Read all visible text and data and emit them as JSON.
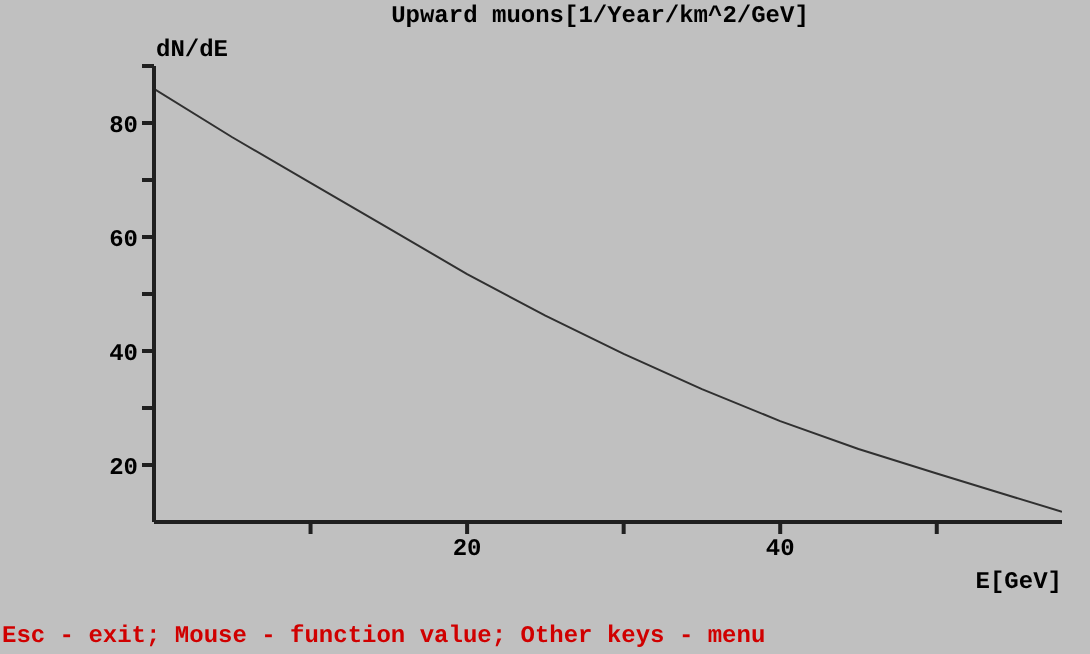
{
  "chart_data": {
    "type": "line",
    "title": "Upward muons[1/Year/km^2/GeV]",
    "ylabel": "dN/dE",
    "xlabel": "E[GeV]",
    "annotations": [
      "Esc - exit; Mouse - function value; Other keys - menu"
    ],
    "x": [
      0,
      5,
      10,
      15,
      20,
      25,
      30,
      35,
      40,
      45,
      50,
      55,
      58
    ],
    "values": [
      86,
      77.5,
      69.5,
      61.5,
      53.5,
      46.2,
      39.5,
      33.3,
      27.7,
      22.8,
      18.5,
      14.3,
      11.8
    ],
    "color": "#303030",
    "xlim": [
      0,
      58
    ],
    "xticks": [
      {
        "value": 10,
        "label": null
      },
      20,
      {
        "value": 30,
        "label": null
      },
      40,
      {
        "value": 50,
        "label": null
      }
    ],
    "ylim": [
      10,
      90
    ],
    "yticks": [
      20,
      {
        "value": 30,
        "label": null
      },
      40,
      {
        "value": 50,
        "label": null
      },
      60,
      {
        "value": 70,
        "label": null
      },
      80,
      {
        "value": 90,
        "label": null
      }
    ]
  }
}
